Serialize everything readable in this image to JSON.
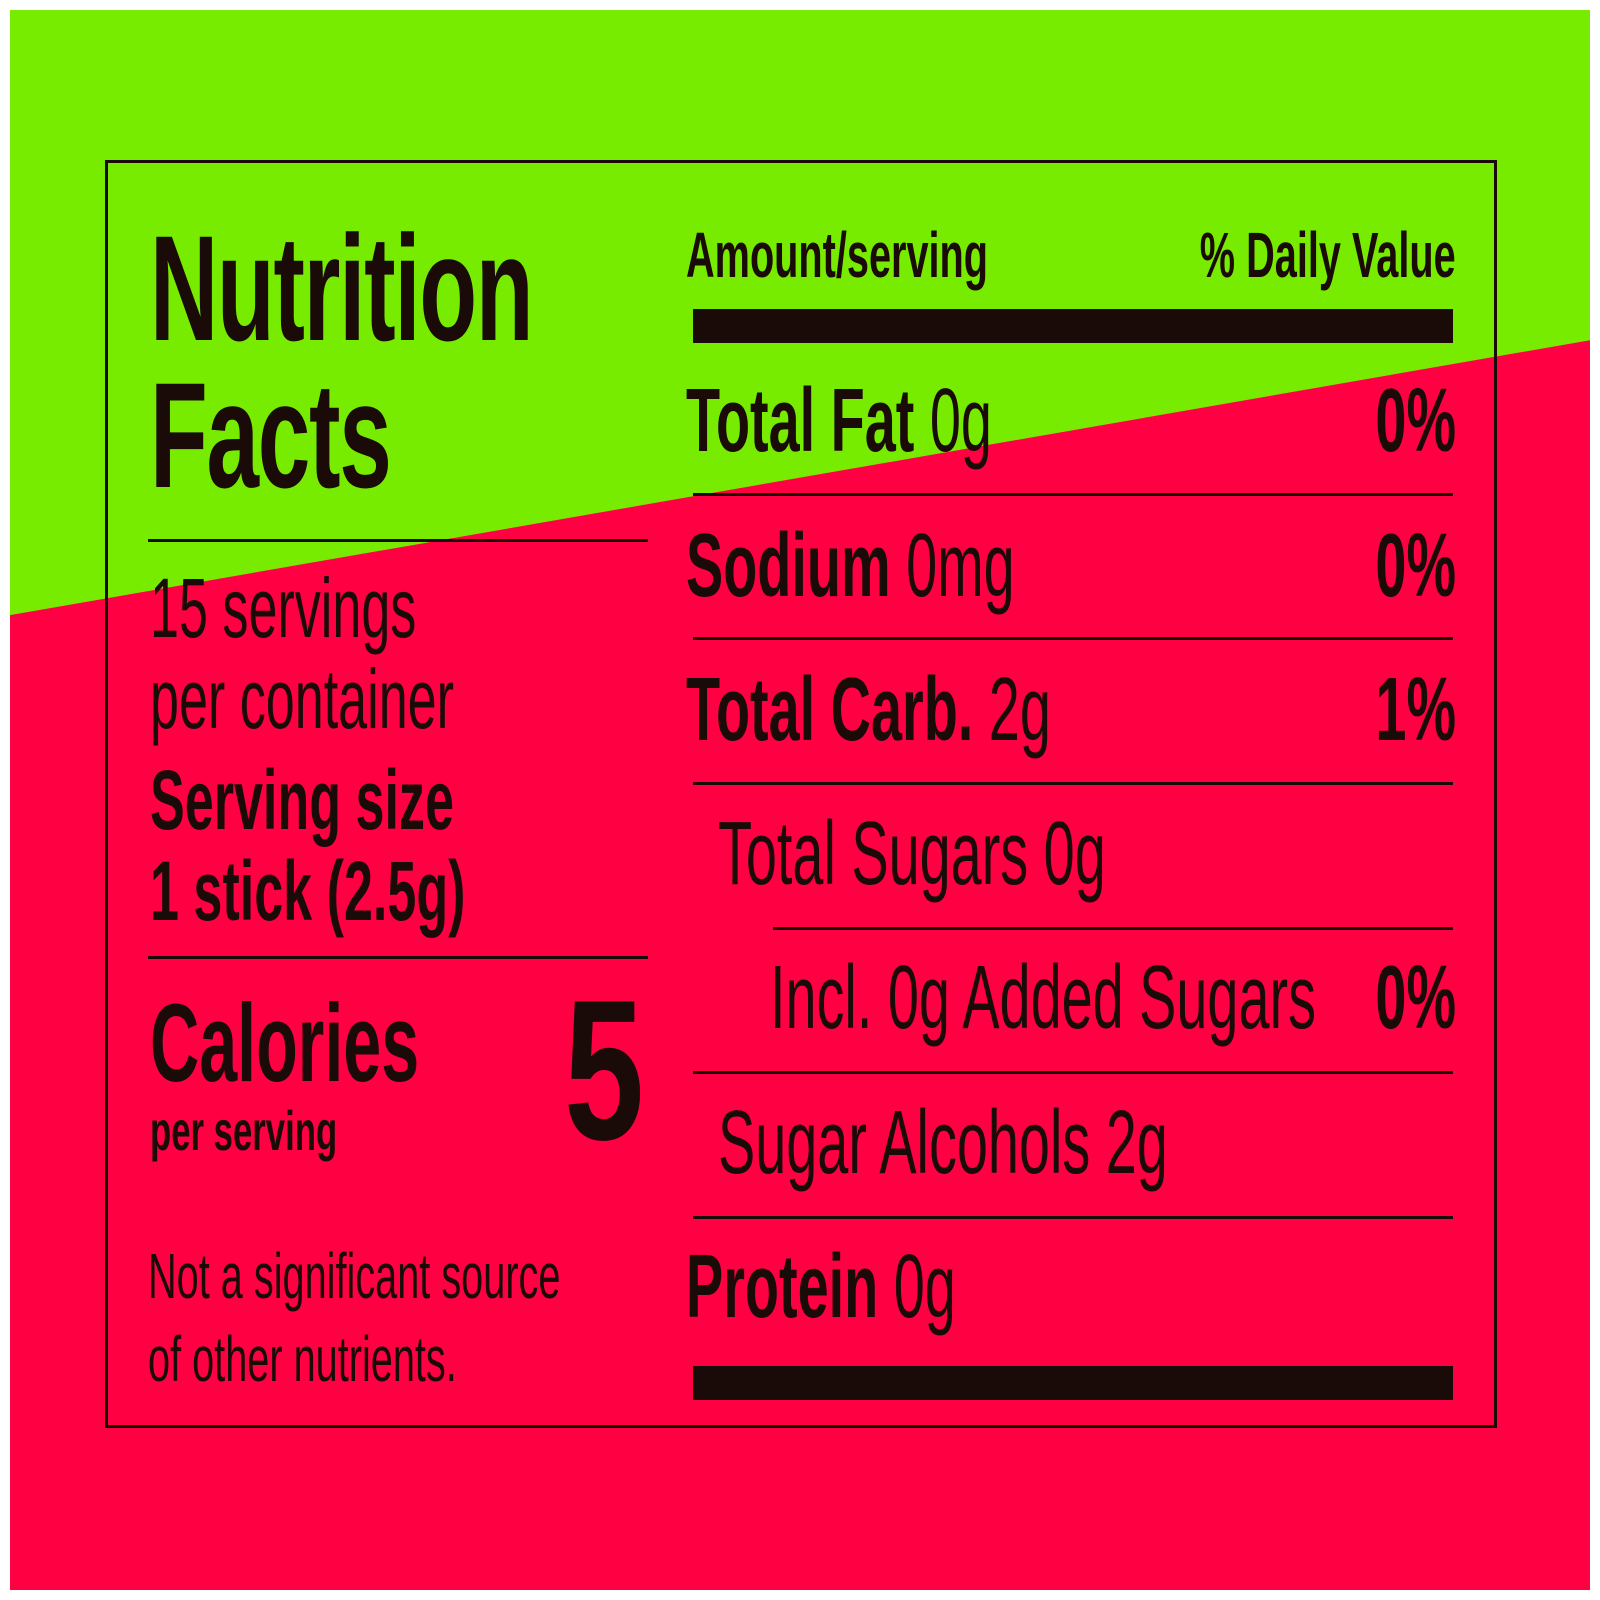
{
  "colors": {
    "background_green": "#77ec00",
    "background_red": "#ff0043",
    "ink": "#1b0b08"
  },
  "panel": {
    "title_line1": "Nutrition",
    "title_line2": "Facts",
    "servings_line1": "15 servings",
    "servings_line2": "per container",
    "serving_size_label": "Serving size",
    "serving_size_value": "1 stick (2.5g)",
    "calories_label": "Calories",
    "calories_sub": "per serving",
    "calories_value": "5",
    "footnote_line1": "Not a significant source",
    "footnote_line2": "of other nutrients.",
    "header_amount": "Amount/serving",
    "header_dv": "% Daily Value",
    "nutrients": [
      {
        "name": "Total Fat",
        "amount": "0g",
        "dv": "0%"
      },
      {
        "name": "Sodium",
        "amount": "0mg",
        "dv": "0%"
      },
      {
        "name": "Total Carb.",
        "amount": "2g",
        "dv": "1%"
      },
      {
        "name": "Total Sugars 0g"
      },
      {
        "name": "Incl. 0g Added Sugars",
        "dv": "0%"
      },
      {
        "name": "Sugar Alcohols 2g"
      },
      {
        "name": "Protein",
        "amount": "0g"
      }
    ]
  }
}
